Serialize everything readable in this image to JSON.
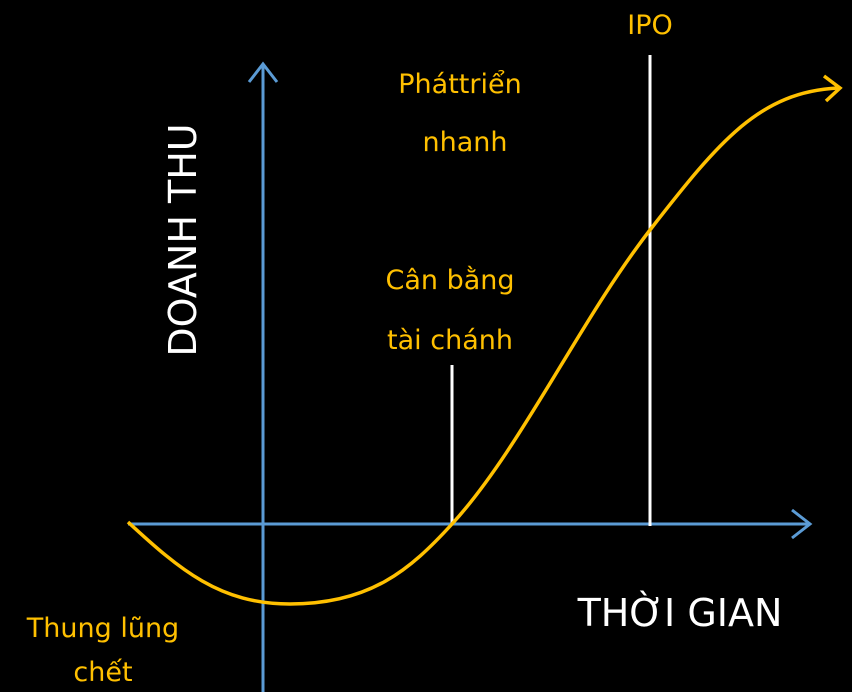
{
  "y_axis_label": "DOANH THU",
  "x_axis_label": "THỜI GIAN",
  "annotations": {
    "valley": [
      "Thung lũng",
      "chết"
    ],
    "break_even": [
      "Cân bằng",
      "tài chánh"
    ],
    "fast_growth": [
      "Pháttriển",
      "nhanh"
    ],
    "ipo": "IPO"
  }
}
